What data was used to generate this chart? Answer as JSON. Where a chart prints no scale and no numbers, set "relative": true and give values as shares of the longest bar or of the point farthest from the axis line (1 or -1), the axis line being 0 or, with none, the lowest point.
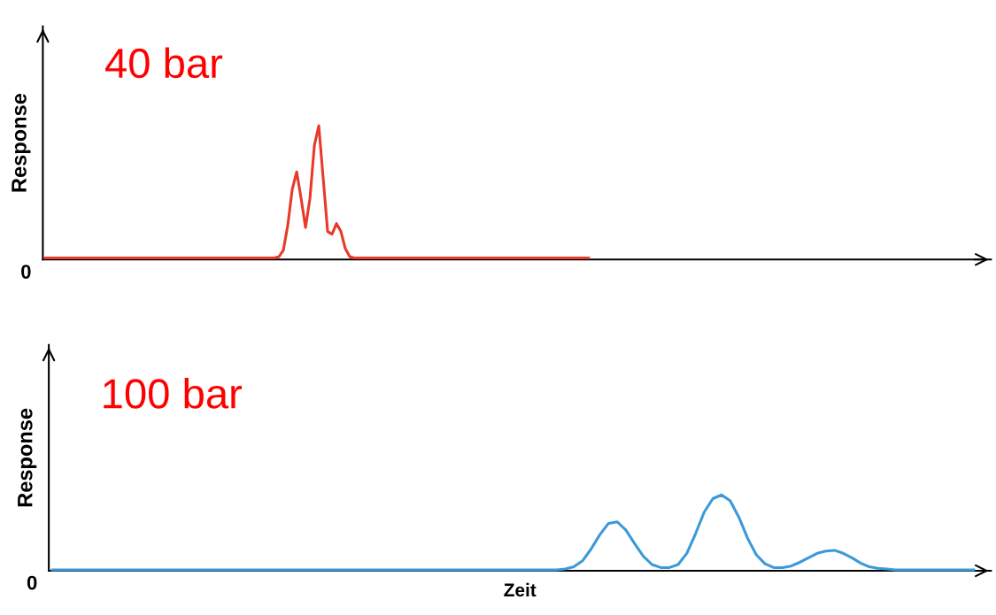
{
  "chart_data": [
    {
      "type": "line",
      "title": "40 bar",
      "ylabel": "Response",
      "relative": true,
      "annotations": [
        "0"
      ],
      "grid": false,
      "legend": false,
      "tick_labels": false,
      "categories": [
        null,
        null,
        null,
        null,
        null,
        null,
        null,
        null,
        null,
        null,
        null,
        null,
        null,
        null,
        null,
        null,
        null,
        null,
        null,
        null,
        null,
        null,
        null,
        null,
        null,
        null,
        null,
        null,
        null,
        null,
        null,
        null,
        null,
        null,
        null,
        null,
        null,
        null,
        null,
        null,
        null,
        null,
        null,
        null,
        null,
        null,
        null,
        null,
        null,
        null,
        null,
        null,
        null,
        null,
        null,
        null,
        null,
        null,
        null,
        null,
        null,
        null,
        null,
        null,
        null,
        null,
        null,
        null,
        null,
        null,
        null,
        null,
        null,
        null,
        null,
        null,
        null,
        null,
        null,
        null,
        null,
        null,
        null,
        null,
        null,
        null,
        null,
        null,
        null,
        null,
        null,
        null,
        null,
        null,
        null,
        null,
        null,
        null,
        null,
        null,
        null,
        null,
        null,
        null,
        null,
        null,
        null,
        null,
        null,
        null,
        null,
        null,
        null,
        null,
        null,
        null,
        null,
        null,
        null,
        null,
        null,
        null,
        null,
        null,
        null,
        null,
        null,
        null,
        null,
        null,
        null,
        null,
        null,
        null,
        null,
        null,
        null,
        null,
        null,
        null,
        null,
        null,
        null,
        null,
        null,
        null,
        null,
        null,
        null,
        null,
        null,
        null,
        null,
        null,
        null,
        null,
        null,
        null,
        null,
        null,
        null,
        null,
        null,
        null,
        null,
        null,
        null,
        null,
        null,
        null,
        null,
        null,
        null,
        null,
        null,
        null,
        null,
        null,
        null,
        null,
        null,
        null,
        null,
        null,
        null,
        null,
        null,
        null,
        null,
        null,
        null,
        null,
        null,
        null,
        null,
        null,
        null,
        null,
        null,
        null,
        null,
        null,
        null,
        null,
        null,
        null,
        null,
        null,
        null,
        null,
        null,
        null,
        null
      ],
      "series": [
        {
          "color": "#e8392a",
          "values": [
            0,
            0,
            0,
            0,
            0,
            0,
            0,
            0,
            0,
            0,
            0,
            0,
            0,
            0,
            0,
            0,
            0,
            0,
            0,
            0,
            0,
            0,
            0,
            0,
            0,
            0,
            0,
            0,
            0,
            0,
            0,
            0,
            0,
            0,
            0,
            0,
            0,
            0,
            0,
            0,
            0,
            0,
            0,
            0,
            0,
            0,
            0,
            0,
            0,
            0,
            0,
            0,
            0,
            0.01,
            0.06,
            0.25,
            0.52,
            0.65,
            0.45,
            0.23,
            0.45,
            0.85,
            1,
            0.6,
            0.2,
            0.18,
            0.26,
            0.2,
            0.07,
            0.01,
            0,
            0,
            0,
            0,
            0,
            0,
            0,
            0,
            0,
            0,
            0,
            0,
            0,
            0,
            0,
            0,
            0,
            0,
            0,
            0,
            0,
            0,
            0,
            0,
            0,
            0,
            0,
            0,
            0,
            0,
            0,
            0,
            0,
            0,
            0,
            0,
            0,
            0,
            0,
            0,
            0,
            0,
            0,
            0,
            0,
            0,
            0,
            0,
            0,
            0,
            0,
            0,
            0,
            0,
            null,
            null,
            null,
            null,
            null,
            null,
            null,
            null,
            null,
            null,
            null,
            null,
            null,
            null,
            null,
            null,
            null,
            null,
            null,
            null,
            null,
            null,
            null,
            null,
            null,
            null,
            null,
            null,
            null,
            null,
            null,
            null,
            null,
            null,
            null,
            null,
            null,
            null,
            null,
            null,
            null,
            null,
            null,
            null,
            null,
            null,
            null,
            null,
            null,
            null,
            null,
            null,
            null,
            null,
            null,
            null,
            null,
            null,
            null,
            null,
            null,
            null,
            null,
            null,
            null,
            null,
            null,
            null,
            null,
            null,
            null,
            null,
            null,
            null,
            null,
            null,
            null,
            null,
            null,
            null,
            null,
            null,
            null,
            null,
            null,
            null,
            null,
            null,
            null
          ]
        }
      ]
    },
    {
      "type": "line",
      "title": "100 bar",
      "ylabel": "Response",
      "xlabel": "Zeit",
      "relative": true,
      "annotations": [
        "0"
      ],
      "grid": false,
      "legend": false,
      "tick_labels": false,
      "categories": [
        null,
        null,
        null,
        null,
        null,
        null,
        null,
        null,
        null,
        null,
        null,
        null,
        null,
        null,
        null,
        null,
        null,
        null,
        null,
        null,
        null,
        null,
        null,
        null,
        null,
        null,
        null,
        null,
        null,
        null,
        null,
        null,
        null,
        null,
        null,
        null,
        null,
        null,
        null,
        null,
        null,
        null,
        null,
        null,
        null,
        null,
        null,
        null,
        null,
        null,
        null,
        null,
        null,
        null,
        null,
        null,
        null,
        null,
        null,
        null,
        null,
        null,
        null,
        null,
        null,
        null,
        null,
        null,
        null,
        null,
        null,
        null,
        null,
        null,
        null,
        null,
        null,
        null,
        null,
        null,
        null,
        null,
        null,
        null,
        null,
        null,
        null,
        null,
        null,
        null,
        null,
        null,
        null,
        null,
        null,
        null,
        null,
        null,
        null,
        null,
        null,
        null,
        null,
        null,
        null,
        null,
        null
      ],
      "series": [
        {
          "color": "#3a9ad9",
          "values": [
            0,
            0,
            0,
            0,
            0,
            0,
            0,
            0,
            0,
            0,
            0,
            0,
            0,
            0,
            0,
            0,
            0,
            0,
            0,
            0,
            0,
            0,
            0,
            0,
            0,
            0,
            0,
            0,
            0,
            0,
            0,
            0,
            0,
            0,
            0,
            0,
            0,
            0,
            0,
            0,
            0,
            0,
            0,
            0,
            0,
            0,
            0,
            0,
            0,
            0,
            0,
            0,
            0,
            0,
            0,
            0,
            0,
            0,
            0,
            0.01,
            0.04,
            0.12,
            0.28,
            0.47,
            0.62,
            0.64,
            0.53,
            0.35,
            0.18,
            0.07,
            0.03,
            0.03,
            0.07,
            0.22,
            0.48,
            0.77,
            0.95,
            1,
            0.92,
            0.7,
            0.42,
            0.2,
            0.08,
            0.03,
            0.03,
            0.05,
            0.1,
            0.16,
            0.22,
            0.25,
            0.26,
            0.22,
            0.16,
            0.09,
            0.04,
            0.02,
            0.01,
            0,
            0,
            0,
            0,
            0,
            0,
            0,
            0,
            0,
            0
          ]
        }
      ]
    }
  ]
}
